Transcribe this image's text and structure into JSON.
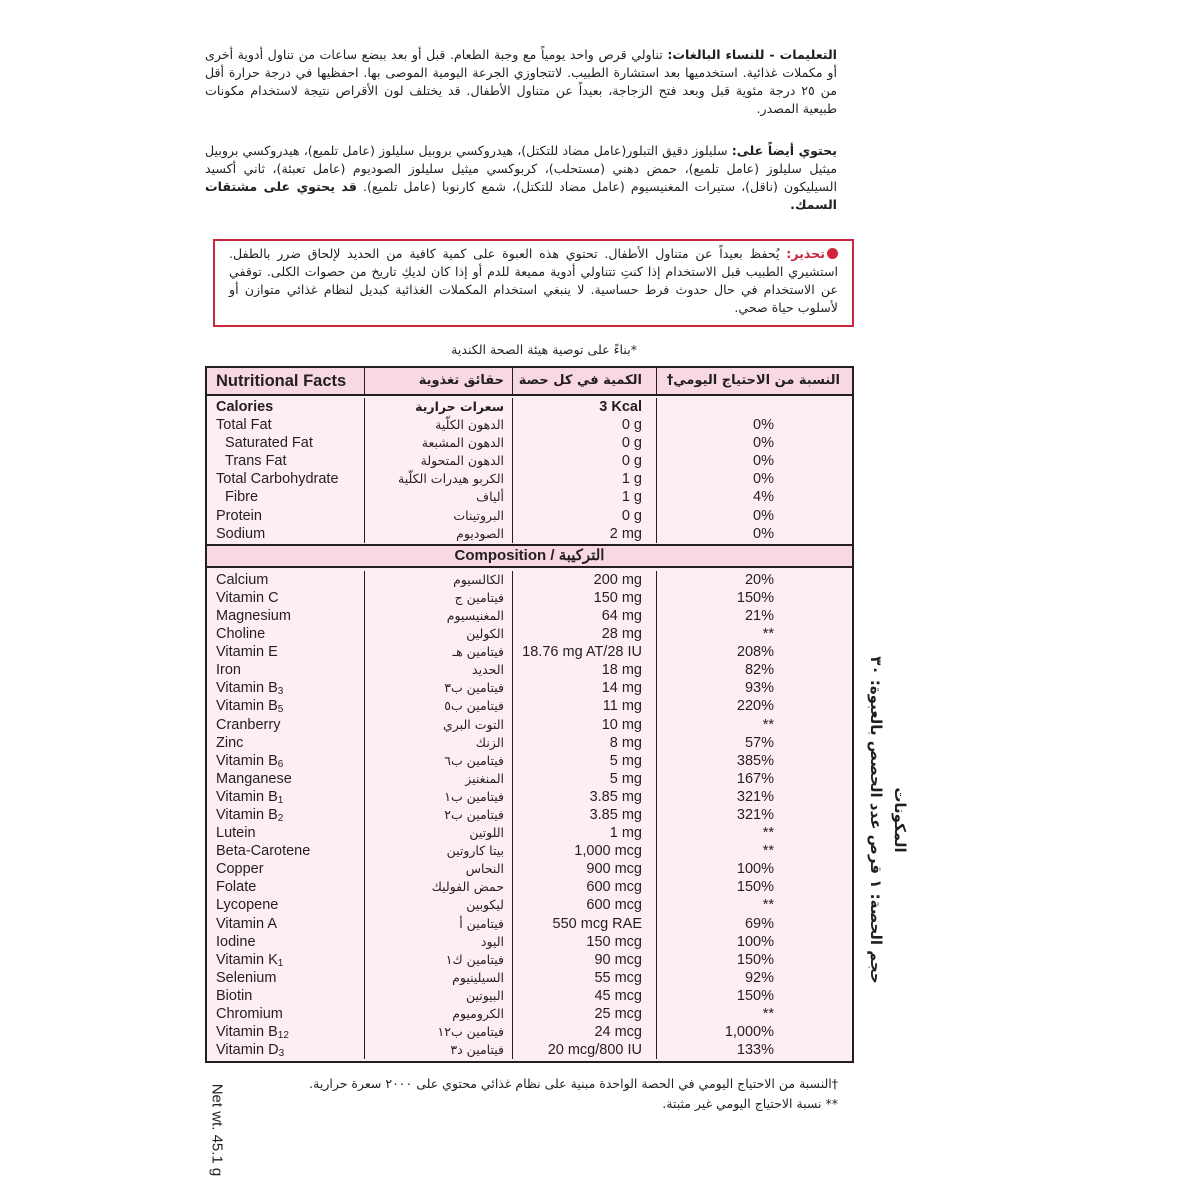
{
  "instructions": {
    "title": "التعليمات - للنساء البالغات:",
    "text": "تناولي قرص واحد يومياً مع وجبة الطعام.  قبل أو بعد ببضع ساعات من تناول أدوية أخرى أو مكملات غذائية. استخدميها بعد استشارة الطبيب. لاتتجاوزي الجرعة اليومية الموصى بها. احفظيها في درجة حرارة أقل من ٢٥ درجة مئوية قبل وبعد فتح الزجاجة، بعيداً عن متناول الأطفال. قد يختلف لون الأقراص نتيجة لاستخدام مكونات طبيعية المصدر."
  },
  "also_contains": {
    "title": "يحتوي أيضاً على:",
    "text": "سليلوز دقيق التبلور(عامل مضاد للتكتل)، هيدروكسي بروبيل سليلوز (عامل تلميع)، هيدروكسي بروبيل ميثيل سليلوز (عامل تلميع)، حمض دهني (مستحلب)، كربوكسي ميثيل سليلوز الصوديوم (عامل تعبئة)، ثاني أكسيد السيليكون (ناقل)، ستيرات المغنيسيوم (عامل مضاد للتكتل)، شمع كارنوبا (عامل تلميع).",
    "bold_note": "قد يحتوي على مشتقات السمك."
  },
  "warning": {
    "title": "تحذير:",
    "text": "يُحفظ بعيداً عن متناول الأطفال. تحتوي هذه العبوة على كمية كافية من الحديد لإلحاق ضرر بالطفل. استشيري الطبيب قبل الاستخدام إذا كنتِ تتناولي أدوية مميعة للدم أو إذا كان لديكِ تاريخ من حصوات الكلى. توقفي عن الاستخدام في حال حدوث فرط حساسية. لا ينبغي استخدام المكملات الغذائية كبديل لنظام غذائي متوازن أو لأسلوب حياة صحي.",
    "color": "#c8283f"
  },
  "health_canada_note": "*بناءً على  توصية هيئة الصحة الكندية",
  "table": {
    "headers": [
      "Nutritional Facts",
      "حقائق تغذوية",
      "الكمية في كل حصة",
      "النسبة من الاحتياج اليومي†"
    ],
    "nutrition_rows": [
      {
        "en": "Calories",
        "ar": "سعرات حرارية",
        "amount": "3 Kcal",
        "dv": "",
        "bold": true
      },
      {
        "en": "Total Fat",
        "ar": "الدهون الكلّية",
        "amount": "0 g",
        "dv": "0%"
      },
      {
        "en": " Saturated Fat",
        "ar": "الدهون المشبعة",
        "amount": "0 g",
        "dv": "0%"
      },
      {
        "en": " Trans Fat",
        "ar": "الدهون المتحولة",
        "amount": "0 g",
        "dv": "0%"
      },
      {
        "en": "Total Carbohydrate",
        "ar": "الكربو هيدرات الكلّية",
        "amount": "1 g",
        "dv": "0%"
      },
      {
        "en": " Fibre",
        "ar": "ألياف",
        "amount": "1 g",
        "dv": "4%"
      },
      {
        "en": "Protein",
        "ar": "البروتينات",
        "amount": "0 g",
        "dv": "0%"
      },
      {
        "en": "Sodium",
        "ar": "الصوديوم",
        "amount": "2 mg",
        "dv": "0%"
      }
    ],
    "composition_title": "Composition / التركيبة",
    "composition_rows": [
      {
        "en": "Calcium",
        "sub": "",
        "ar": "الكالسيوم",
        "amount": "200 mg",
        "dv": "20%"
      },
      {
        "en": "Vitamin C",
        "sub": "",
        "ar": "فيتامين ج",
        "amount": "150 mg",
        "dv": "150%"
      },
      {
        "en": "Magnesium",
        "sub": "",
        "ar": "المغنيسيوم",
        "amount": "64 mg",
        "dv": "21%"
      },
      {
        "en": "Choline",
        "sub": "",
        "ar": "الكولين",
        "amount": "28 mg",
        "dv": "**"
      },
      {
        "en": "Vitamin E",
        "sub": "",
        "ar": "فيتامين هـ",
        "amount": "18.76 mg AT/28 IU",
        "dv": "208%"
      },
      {
        "en": "Iron",
        "sub": "",
        "ar": "الحديد",
        "amount": "18 mg",
        "dv": "82%"
      },
      {
        "en": "Vitamin B",
        "sub": "3",
        "ar": "فيتامين ب٣",
        "amount": "14 mg",
        "dv": "93%"
      },
      {
        "en": "Vitamin B",
        "sub": "5",
        "ar": "فيتامين ب٥",
        "amount": "11 mg",
        "dv": "220%"
      },
      {
        "en": "Cranberry",
        "sub": "",
        "ar": "التوت البري",
        "amount": "10 mg",
        "dv": "**"
      },
      {
        "en": "Zinc",
        "sub": "",
        "ar": "الزنك",
        "amount": "8 mg",
        "dv": "57%"
      },
      {
        "en": "Vitamin B",
        "sub": "6",
        "ar": "فيتامين ب٦",
        "amount": "5 mg",
        "dv": "385%"
      },
      {
        "en": "Manganese",
        "sub": "",
        "ar": "المنغنيز",
        "amount": "5 mg",
        "dv": "167%"
      },
      {
        "en": "Vitamin B",
        "sub": "1",
        "ar": "فيتامين ب١",
        "amount": "3.85 mg",
        "dv": "321%"
      },
      {
        "en": "Vitamin B",
        "sub": "2",
        "ar": "فيتامين ب٢",
        "amount": "3.85 mg",
        "dv": "321%"
      },
      {
        "en": "Lutein",
        "sub": "",
        "ar": "اللوتين",
        "amount": "1 mg",
        "dv": "**"
      },
      {
        "en": "Beta-Carotene",
        "sub": "",
        "ar": "بيتا كاروتين",
        "amount": "1,000 mcg",
        "dv": "**"
      },
      {
        "en": "Copper",
        "sub": "",
        "ar": "النحاس",
        "amount": "900 mcg",
        "dv": "100%"
      },
      {
        "en": "Folate",
        "sub": "",
        "ar": "حمض الفوليك",
        "amount": "600 mcg",
        "dv": "150%"
      },
      {
        "en": "Lycopene",
        "sub": "",
        "ar": "ليكوبين",
        "amount": "600 mcg",
        "dv": "**"
      },
      {
        "en": "Vitamin A",
        "sub": "",
        "ar": "فيتامين أ",
        "amount": "550 mcg RAE",
        "dv": "69%"
      },
      {
        "en": "Iodine",
        "sub": "",
        "ar": "اليود",
        "amount": "150 mcg",
        "dv": "100%"
      },
      {
        "en": "Vitamin K",
        "sub": "1",
        "ar": "فيتامين ك١",
        "amount": "90 mcg",
        "dv": "150%"
      },
      {
        "en": "Selenium",
        "sub": "",
        "ar": "السيلينيوم",
        "amount": "55 mcg",
        "dv": "92%"
      },
      {
        "en": "Biotin",
        "sub": "",
        "ar": "البيوتين",
        "amount": "45 mcg",
        "dv": "150%"
      },
      {
        "en": "Chromium",
        "sub": "",
        "ar": "الكروميوم",
        "amount": "25 mcg",
        "dv": "**"
      },
      {
        "en": "Vitamin B",
        "sub": "12",
        "ar": "فيتامين ب١٢",
        "amount": "24 mcg",
        "dv": "1,000%"
      },
      {
        "en": "Vitamin D",
        "sub": "3",
        "ar": "فيتامين د٣",
        "amount": "20 mcg/800 IU",
        "dv": "133%"
      }
    ],
    "colors": {
      "header_bg": "#f8d8e1",
      "body_bg": "#fdeef2"
    }
  },
  "footnotes": [
    "†النسبة من الاحتياج اليومي في الحصة الواحدة مبنية على نظام غذائي محتوي على ٢٠٠٠ سعرة حرارية.",
    "** نسبة الاحتياج اليومي غير مثبتة."
  ],
  "side_panel": {
    "heading": "المكونات",
    "serving": "حجم الحصة: ١ قرص عدد الحصص بالعبوة: ٣٠"
  },
  "net_weight": "Net wt. 45.1 g"
}
